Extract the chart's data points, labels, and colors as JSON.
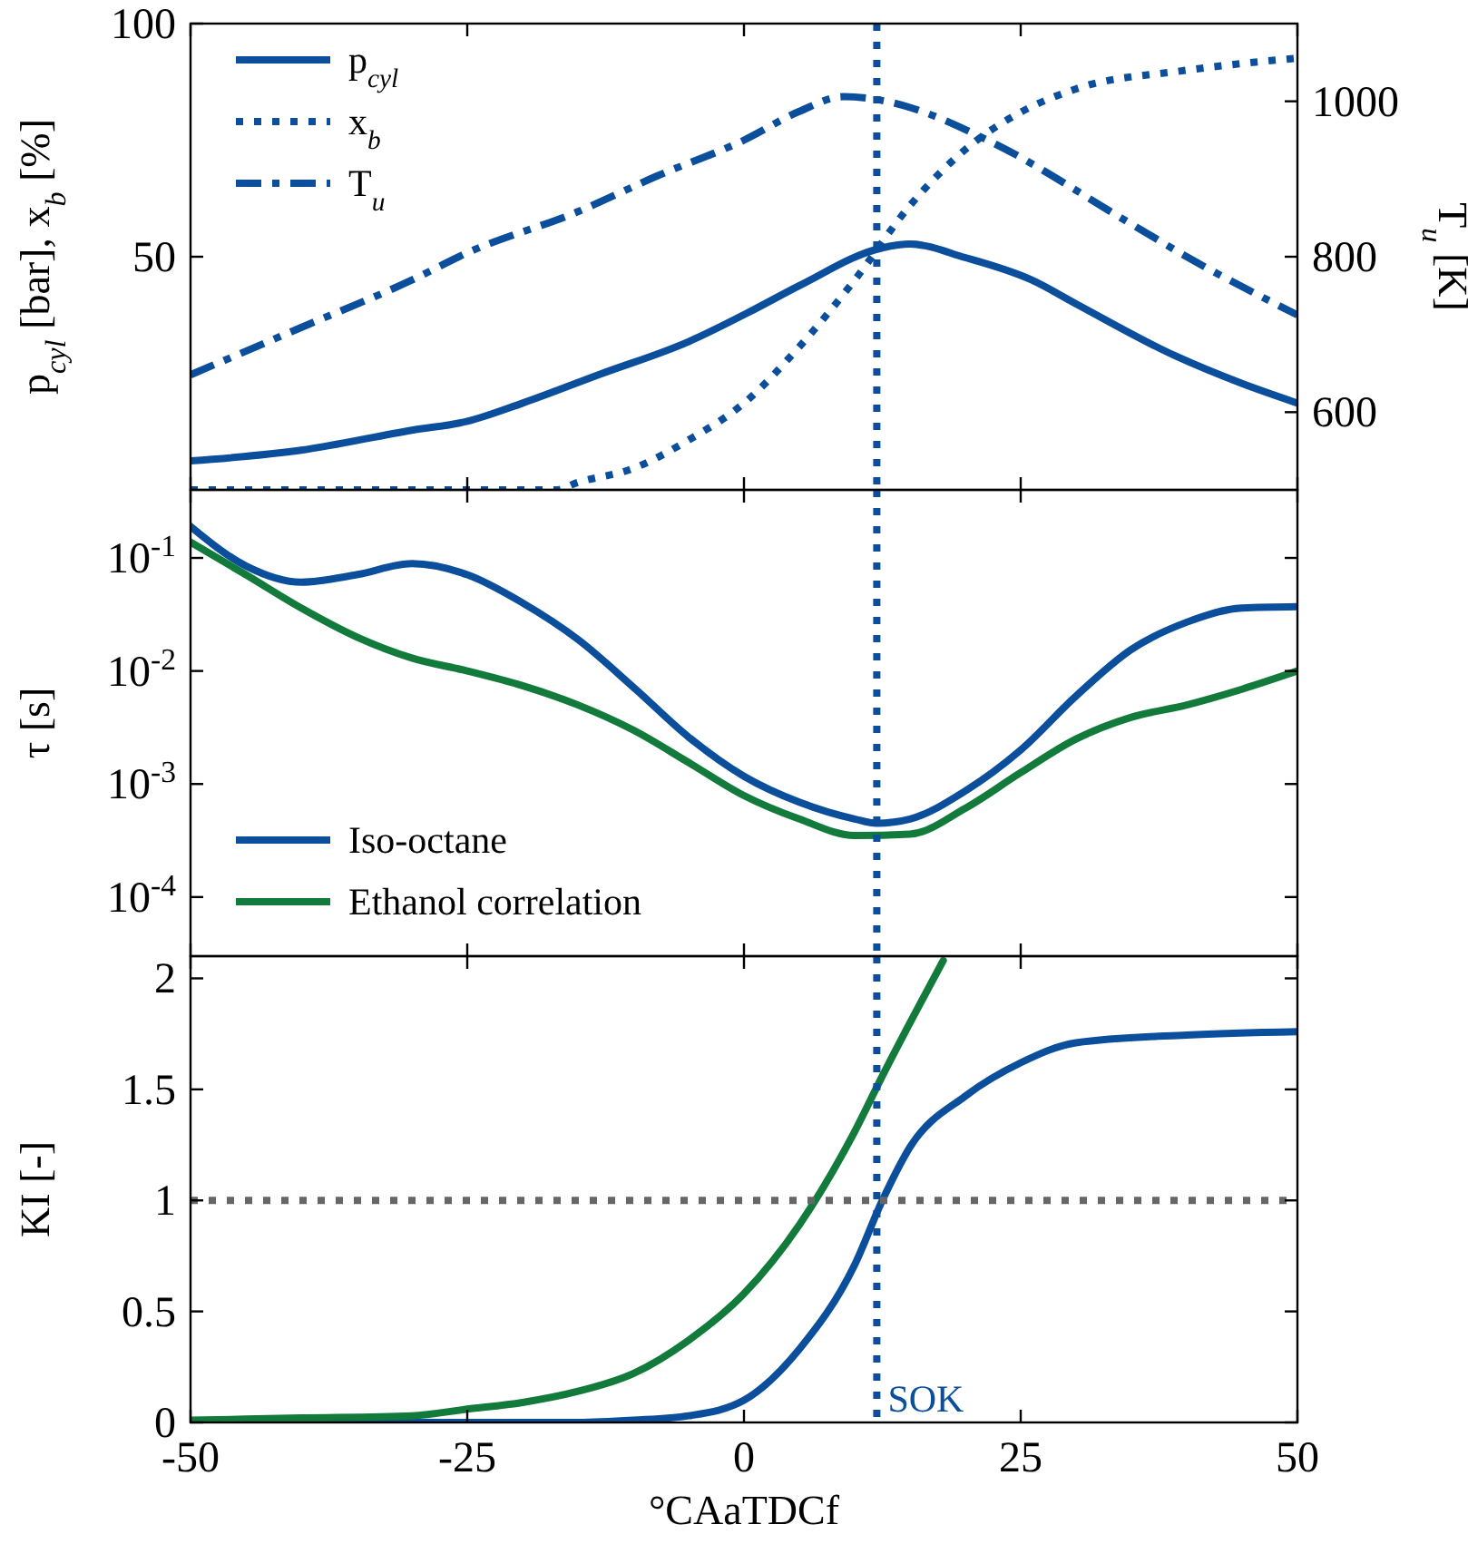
{
  "chart_data": [
    {
      "type": "line",
      "ylabel": "p$_{cyl}$ [bar], x$_{b}$ [%]",
      "y2label": "T$_{u}$ [K]",
      "xlim": [
        -50,
        50
      ],
      "xticks": [
        -50,
        -25,
        0,
        25,
        50
      ],
      "ylim": [
        0,
        100
      ],
      "yticks": [
        50,
        100
      ],
      "y2lim": [
        500,
        1100
      ],
      "y2ticks": [
        600,
        800,
        1000
      ],
      "tick_labels": "y",
      "legend": "top left",
      "grid": false,
      "marker": "none",
      "series": [
        {
          "name": "p$_{cyl}$",
          "color": "#0b4f9c",
          "line_style": "solid",
          "x": [
            -50,
            -40,
            -30,
            -25,
            -20,
            -13,
            -5,
            1,
            5,
            12.5,
            15,
            20,
            26,
            30,
            39,
            45,
            50
          ],
          "values": [
            6.2,
            8.5,
            12.8,
            14.7,
            18.6,
            24.8,
            31.8,
            38.8,
            43.8,
            51.9,
            52.7,
            49.8,
            45,
            39.9,
            28.7,
            22.8,
            18.6
          ]
        },
        {
          "name": "x$_{b}$",
          "color": "#0b4f9c",
          "line_style": "dotted",
          "x": [
            -50,
            -30,
            -17,
            -15,
            -10,
            -5,
            0,
            5,
            10,
            15,
            20,
            25,
            30,
            40,
            50
          ],
          "values": [
            0,
            0,
            0,
            1.6,
            4.6,
            10.7,
            18.6,
            30.7,
            45,
            61,
            73,
            81,
            86,
            90,
            92.6
          ]
        },
        {
          "name": "T$_{u}$",
          "color": "#0b4f9c",
          "line_style": "dashdot",
          "axis": "y2",
          "x": [
            -50,
            -40,
            -30,
            -25,
            -15,
            -8,
            0,
            5,
            9,
            12.5,
            15,
            22,
            35,
            40,
            50
          ],
          "values": [
            648,
            709,
            770,
            805,
            858,
            903,
            950,
            987,
            1006,
            1001,
            992,
            950,
            842,
            800,
            725
          ]
        }
      ],
      "ref_lines": [
        {
          "axis": "x",
          "value": 12,
          "color": "#0b4f9c",
          "line_style": "dotted"
        }
      ]
    },
    {
      "type": "line",
      "ylabel": "τ [s]",
      "log": "y",
      "xlim": [
        -50,
        50
      ],
      "xticks": [
        -50,
        -25,
        0,
        25,
        50
      ],
      "ylim": [
        3e-05,
        0.4
      ],
      "yticks": [
        {
          "value": 0.1,
          "label": "10$^{-1}$"
        },
        {
          "value": 0.01,
          "label": "10$^{-2}$"
        },
        {
          "value": 0.001,
          "label": "10$^{-3}$"
        },
        {
          "value": 0.0001,
          "label": "10$^{-4}$"
        }
      ],
      "tick_labels": "y",
      "legend": "bottom left",
      "grid": false,
      "marker": "none",
      "series": [
        {
          "name": "Iso-octane",
          "color": "#0b4f9c",
          "line_style": "solid",
          "x": [
            -50,
            -45,
            -40,
            -35,
            -30,
            -25,
            -20,
            -15,
            -10,
            -5,
            0,
            5,
            10,
            12,
            15,
            20,
            25,
            30,
            35,
            40,
            45,
            50
          ],
          "values": [
            0.19,
            0.085,
            0.061,
            0.071,
            0.089,
            0.071,
            0.04,
            0.019,
            0.0072,
            0.0026,
            0.00117,
            0.00069,
            0.00049,
            0.00045,
            0.00049,
            0.00087,
            0.002,
            0.006,
            0.0155,
            0.027,
            0.036,
            0.037
          ]
        },
        {
          "name": "Ethanol correlation",
          "color": "#127a3a",
          "line_style": "solid",
          "x": [
            -50,
            -45,
            -40,
            -35,
            -30,
            -25,
            -20,
            -15,
            -10,
            -5,
            0,
            5,
            10,
            15,
            20,
            25,
            30,
            35,
            40,
            45,
            50
          ],
          "values": [
            0.138,
            0.071,
            0.036,
            0.02,
            0.013,
            0.01,
            0.0074,
            0.005,
            0.003,
            0.00155,
            0.00079,
            0.00049,
            0.00035,
            0.00036,
            0.00061,
            0.00126,
            0.0025,
            0.0039,
            0.005,
            0.0069,
            0.01
          ]
        }
      ],
      "ref_lines": [
        {
          "axis": "x",
          "value": 12,
          "color": "#0b4f9c",
          "line_style": "dotted"
        }
      ]
    },
    {
      "type": "line",
      "ylabel": "KI [-]",
      "xlabel": "°CAaTDCf",
      "xlim": [
        -50,
        50
      ],
      "xticks": [
        -50,
        -25,
        0,
        25,
        50
      ],
      "ylim": [
        0,
        2.1
      ],
      "yticks": [
        0,
        0.5,
        1,
        1.5,
        2
      ],
      "grid": false,
      "marker": "none",
      "legend": false,
      "series": [
        {
          "color": "#0b4f9c",
          "line_style": "solid",
          "x": [
            -50,
            -30,
            -15,
            -10,
            -5,
            0,
            5,
            10,
            12.5,
            15,
            20,
            25,
            30,
            40,
            50
          ],
          "values": [
            0,
            0,
            0,
            0.01,
            0.03,
            0.1,
            0.33,
            0.71,
            1,
            1.24,
            1.47,
            1.62,
            1.71,
            1.745,
            1.76
          ]
        },
        {
          "color": "#127a3a",
          "line_style": "solid",
          "x": [
            -50,
            -40,
            -30,
            -25,
            -20,
            -15,
            -10,
            -5,
            0,
            5,
            10,
            12.5,
            15,
            18
          ],
          "values": [
            0.01,
            0.02,
            0.03,
            0.06,
            0.09,
            0.14,
            0.22,
            0.37,
            0.58,
            0.89,
            1.31,
            1.56,
            1.8,
            2.08
          ]
        }
      ],
      "ref_lines": [
        {
          "axis": "x",
          "value": 12,
          "color": "#0b4f9c",
          "line_style": "dotted",
          "label": "SOK"
        },
        {
          "axis": "y",
          "value": 1,
          "color": "#666666",
          "line_style": "dotted"
        }
      ]
    }
  ]
}
